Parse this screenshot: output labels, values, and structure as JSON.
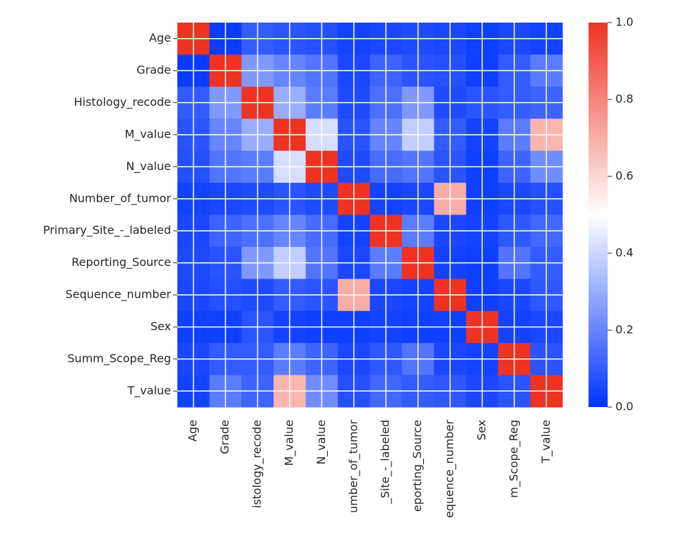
{
  "chart_data": {
    "type": "heatmap",
    "title": "",
    "xlabel": "",
    "ylabel": "",
    "rows": [
      "Age",
      "Grade",
      "Histology_recode",
      "M_value",
      "N_value",
      "Number_of_tumor",
      "Primary_Site_-_labeled",
      "Reporting_Source",
      "Sequence_number",
      "Sex",
      "Summ_Scope_Reg",
      "T_value"
    ],
    "columns": [
      "Age",
      "Grade",
      "Histology_recode",
      "M_value",
      "N_value",
      "Number_of_tumor",
      "Primary_Site_-_labeled",
      "Reporting_Source",
      "Sequence_number",
      "Sex",
      "Summ_Scope_Reg",
      "T_value"
    ],
    "x_tick_labels": [
      "Age",
      "Grade",
      "istology_recode",
      "M_value",
      "N_value",
      "umber_of_tumor",
      "_Site_-_labeled",
      "eporting_Source",
      "equence_number",
      "Sex",
      "m_Scope_Reg",
      "T_value"
    ],
    "values": [
      [
        1.0,
        0.02,
        0.1,
        0.08,
        0.07,
        0.04,
        0.05,
        0.06,
        0.05,
        0.03,
        0.05,
        0.04
      ],
      [
        0.02,
        1.0,
        0.25,
        0.2,
        0.16,
        0.05,
        0.12,
        0.08,
        0.07,
        0.03,
        0.1,
        0.18
      ],
      [
        0.1,
        0.25,
        1.0,
        0.3,
        0.18,
        0.06,
        0.15,
        0.25,
        0.06,
        0.08,
        0.1,
        0.12
      ],
      [
        0.08,
        0.2,
        0.3,
        1.0,
        0.42,
        0.08,
        0.2,
        0.38,
        0.1,
        0.04,
        0.18,
        0.68
      ],
      [
        0.07,
        0.16,
        0.18,
        0.42,
        1.0,
        0.06,
        0.14,
        0.16,
        0.08,
        0.03,
        0.12,
        0.22
      ],
      [
        0.04,
        0.05,
        0.06,
        0.08,
        0.06,
        1.0,
        0.04,
        0.05,
        0.7,
        0.03,
        0.05,
        0.07
      ],
      [
        0.05,
        0.12,
        0.15,
        0.2,
        0.14,
        0.04,
        1.0,
        0.18,
        0.05,
        0.04,
        0.09,
        0.13
      ],
      [
        0.06,
        0.08,
        0.25,
        0.38,
        0.16,
        0.05,
        0.18,
        1.0,
        0.04,
        0.03,
        0.16,
        0.1
      ],
      [
        0.05,
        0.07,
        0.06,
        0.1,
        0.08,
        0.7,
        0.05,
        0.04,
        1.0,
        0.03,
        0.05,
        0.09
      ],
      [
        0.03,
        0.03,
        0.08,
        0.04,
        0.03,
        0.03,
        0.04,
        0.03,
        0.03,
        1.0,
        0.04,
        0.05
      ],
      [
        0.05,
        0.1,
        0.1,
        0.18,
        0.12,
        0.05,
        0.09,
        0.16,
        0.05,
        0.04,
        1.0,
        0.08
      ],
      [
        0.04,
        0.18,
        0.12,
        0.68,
        0.22,
        0.07,
        0.13,
        0.1,
        0.09,
        0.05,
        0.08,
        1.0
      ]
    ],
    "color_scale": {
      "min": 0.0,
      "max": 1.0,
      "colors": [
        "#0033ff",
        "#ffffff",
        "#ee3322"
      ],
      "ticks": [
        "0.0",
        "0.2",
        "0.4",
        "0.6",
        "0.8",
        "1.0"
      ]
    },
    "grid": true,
    "grid_color": "#ffffff"
  }
}
